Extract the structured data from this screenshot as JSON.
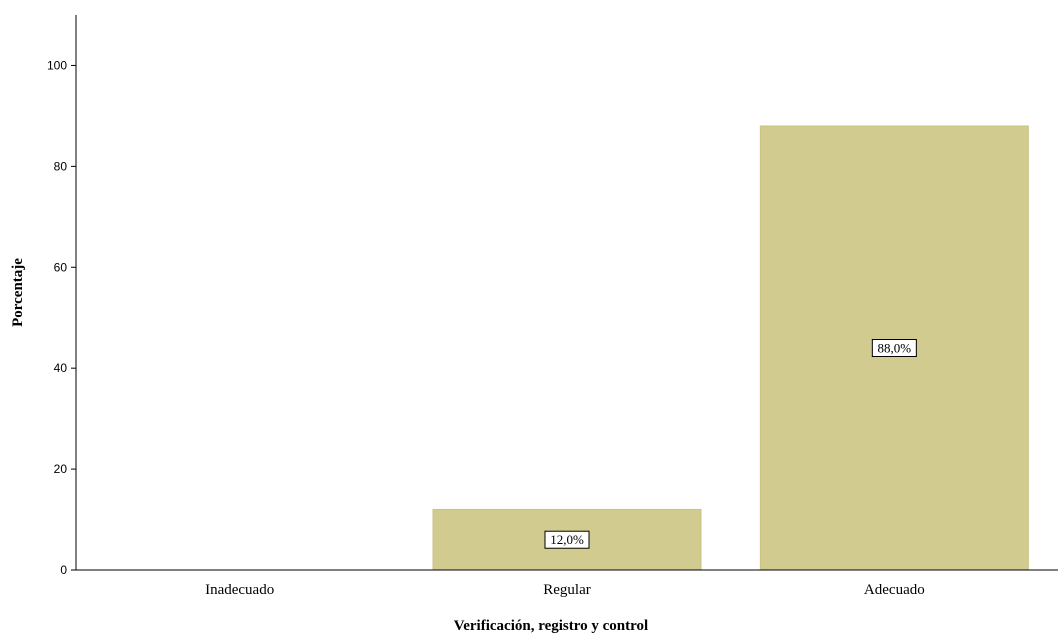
{
  "chart_data": {
    "type": "bar",
    "categories": [
      "Inadecuado",
      "Regular",
      "Adecuado"
    ],
    "values": [
      0,
      12,
      88
    ],
    "data_labels": [
      "",
      "12,0%",
      "88,0%"
    ],
    "xlabel": "Verificación, registro y control",
    "ylabel": "Porcentaje",
    "ylim": [
      0,
      110
    ],
    "yticks": [
      0,
      20,
      40,
      60,
      80,
      100
    ],
    "grid": false,
    "legend": "none",
    "colors": {
      "bar": "#d2cb8f",
      "bar_edge": "#c9c384",
      "axis": "#000000",
      "label_box_fill": "#ffffff",
      "label_box_stroke": "#000000"
    }
  }
}
